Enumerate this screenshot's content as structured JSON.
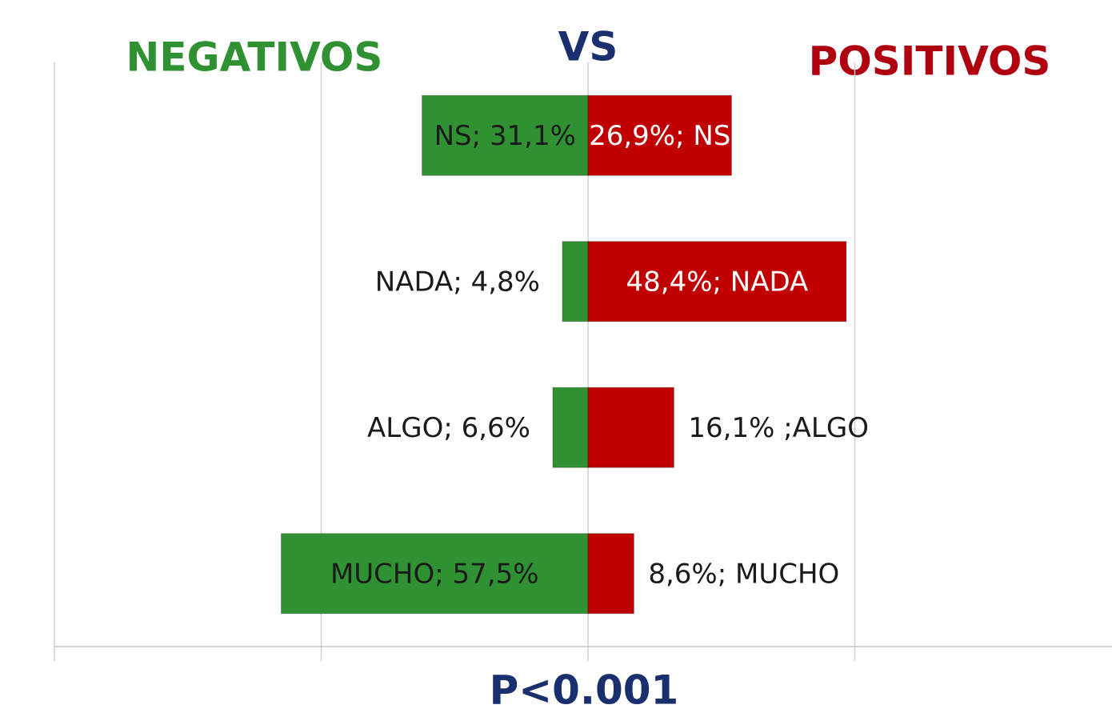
{
  "chart_data": {
    "type": "diverging_bar",
    "title": "VS",
    "subtitle": "P<0.001",
    "xlim": [
      -100,
      100
    ],
    "xticks": [
      -100,
      -50,
      0,
      50,
      100
    ],
    "grid": true,
    "series": [
      {
        "name": "NEGATIVOS",
        "color": "#2f9132",
        "values": [
          -31.1,
          -4.8,
          -6.6,
          -57.5
        ],
        "value_labels": [
          "NS; 31,1%",
          "NADA; 4,8%",
          "ALGO; 6,6%",
          "MUCHO; 57,5%"
        ]
      },
      {
        "name": "POSITIVOS",
        "color": "#c00000",
        "values": [
          26.9,
          48.4,
          16.1,
          8.6
        ],
        "value_labels": [
          "26,9%; NS",
          "48,4%; NADA",
          "16,1% ;ALGO",
          "8,6%; MUCHO"
        ]
      }
    ]
  }
}
